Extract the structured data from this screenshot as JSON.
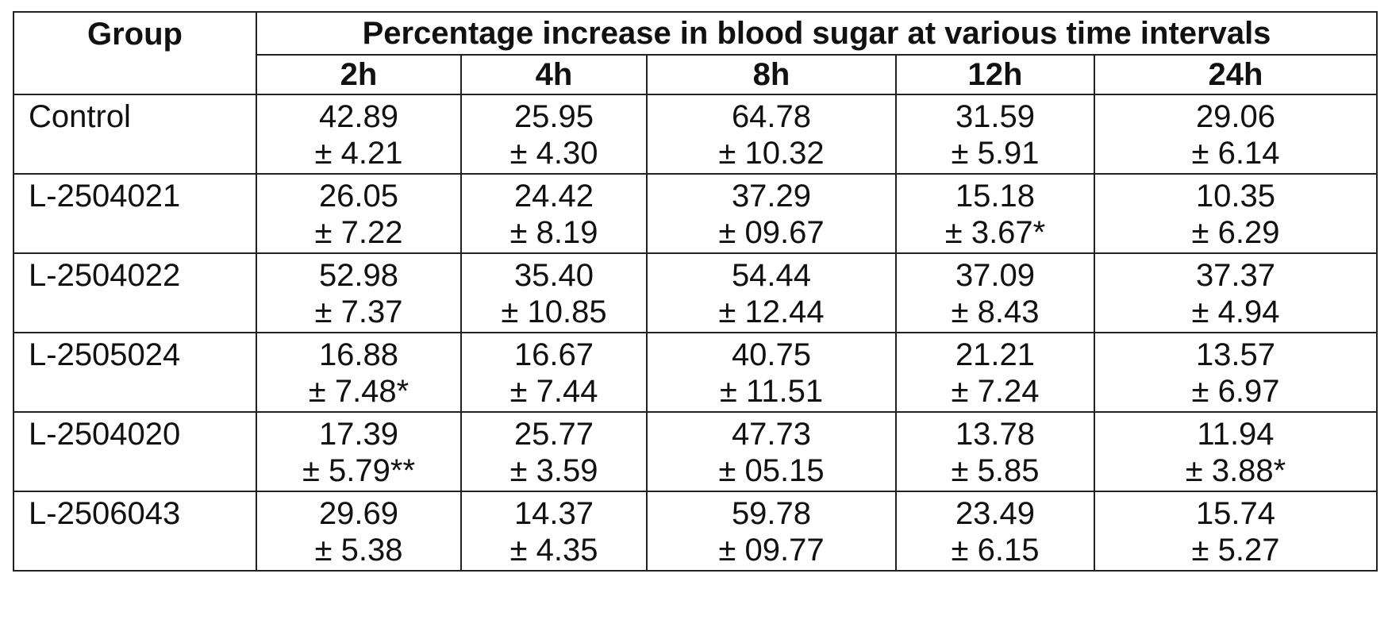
{
  "table": {
    "group_header": "Group",
    "span_header": "Percentage increase in blood sugar at various time intervals",
    "time_headers": [
      "2h",
      "4h",
      "8h",
      "12h",
      "24h"
    ],
    "rows": [
      {
        "group": "Control",
        "cells": [
          {
            "mean": "42.89",
            "sd": "± 4.21"
          },
          {
            "mean": "25.95",
            "sd": "± 4.30"
          },
          {
            "mean": "64.78",
            "sd": "± 10.32"
          },
          {
            "mean": "31.59",
            "sd": "± 5.91"
          },
          {
            "mean": "29.06",
            "sd": "± 6.14"
          }
        ]
      },
      {
        "group": "L-2504021",
        "cells": [
          {
            "mean": "26.05",
            "sd": "± 7.22"
          },
          {
            "mean": "24.42",
            "sd": "± 8.19"
          },
          {
            "mean": "37.29",
            "sd": "± 09.67"
          },
          {
            "mean": "15.18",
            "sd": "± 3.67*"
          },
          {
            "mean": "10.35",
            "sd": "± 6.29"
          }
        ]
      },
      {
        "group": "L-2504022",
        "cells": [
          {
            "mean": "52.98",
            "sd": "± 7.37"
          },
          {
            "mean": "35.40",
            "sd": "± 10.85"
          },
          {
            "mean": "54.44",
            "sd": "± 12.44"
          },
          {
            "mean": "37.09",
            "sd": "± 8.43"
          },
          {
            "mean": "37.37",
            "sd": "± 4.94"
          }
        ]
      },
      {
        "group": "L-2505024",
        "cells": [
          {
            "mean": "16.88",
            "sd": "± 7.48*"
          },
          {
            "mean": "16.67",
            "sd": "± 7.44"
          },
          {
            "mean": "40.75",
            "sd": "± 11.51"
          },
          {
            "mean": "21.21",
            "sd": "± 7.24"
          },
          {
            "mean": "13.57",
            "sd": "± 6.97"
          }
        ]
      },
      {
        "group": "L-2504020",
        "cells": [
          {
            "mean": "17.39",
            "sd": "± 5.79**"
          },
          {
            "mean": "25.77",
            "sd": "± 3.59"
          },
          {
            "mean": "47.73",
            "sd": "± 05.15"
          },
          {
            "mean": "13.78",
            "sd": "± 5.85"
          },
          {
            "mean": "11.94",
            "sd": "± 3.88*"
          }
        ]
      },
      {
        "group": "L-2506043",
        "cells": [
          {
            "mean": "29.69",
            "sd": "± 5.38"
          },
          {
            "mean": "14.37",
            "sd": "± 4.35"
          },
          {
            "mean": "59.78",
            "sd": "± 09.77"
          },
          {
            "mean": "23.49",
            "sd": "± 6.15"
          },
          {
            "mean": "15.74",
            "sd": "± 5.27"
          }
        ]
      }
    ]
  }
}
